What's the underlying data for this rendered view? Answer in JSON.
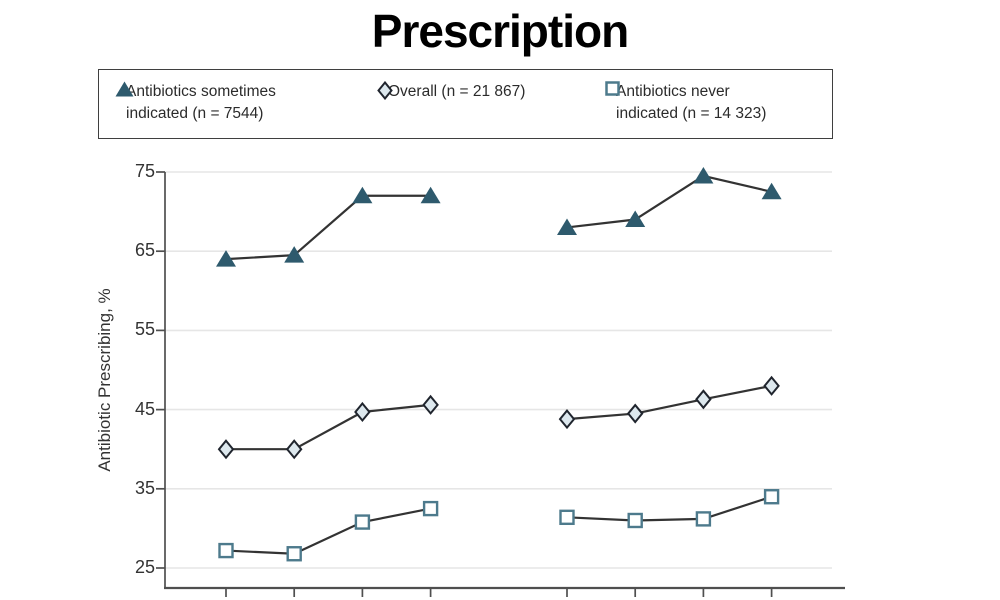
{
  "title": "Prescription",
  "legend": {
    "items": [
      {
        "marker": "triangle",
        "line1": "Antibiotics sometimes",
        "line2": "indicated (n = 7544)"
      },
      {
        "marker": "diamond",
        "line1": "Overall (n = 21 867)",
        "line2": ""
      },
      {
        "marker": "square",
        "line1": "Antibiotics never",
        "line2": "indicated (n = 14 323)"
      }
    ]
  },
  "chart_data": {
    "type": "line",
    "title": "Prescription",
    "xlabel": "",
    "ylabel": "Antibiotic Prescribing, %",
    "ylim": [
      25,
      75
    ],
    "yticks": [
      25,
      35,
      45,
      55,
      65,
      75
    ],
    "grid": true,
    "legend_position": "top",
    "x_groups": 2,
    "points_per_group": 4,
    "x_tick_labels_visible": false,
    "line_color": "#333333",
    "series": [
      {
        "name": "Antibiotics sometimes indicated (n = 7544)",
        "marker": "triangle",
        "fill": "#2e5a6d",
        "stroke": "#2e5a6d",
        "groups": [
          [
            64,
            64.5,
            72,
            72
          ],
          [
            68,
            69,
            74.5,
            72.5
          ]
        ]
      },
      {
        "name": "Overall (n = 21 867)",
        "marker": "diamond",
        "fill": "#dde8ee",
        "stroke": "#20252e",
        "groups": [
          [
            40,
            40,
            44.7,
            45.6
          ],
          [
            43.8,
            44.5,
            46.3,
            48
          ]
        ]
      },
      {
        "name": "Antibiotics never indicated (n = 14 323)",
        "marker": "square",
        "fill": "#ffffff",
        "stroke": "#4d7a8c",
        "groups": [
          [
            27.2,
            26.8,
            30.8,
            32.5
          ],
          [
            31.4,
            31,
            31.2,
            34
          ]
        ]
      }
    ],
    "colors": {
      "grid": "#e6e6e6",
      "axis": "#4f4f4f",
      "tick_text": "#333333"
    }
  }
}
